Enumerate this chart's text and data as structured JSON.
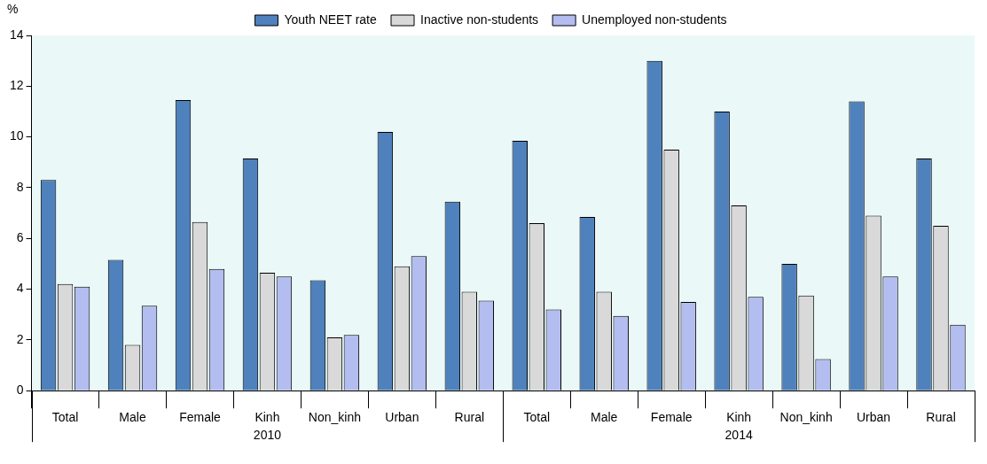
{
  "chart_data": {
    "type": "bar",
    "ylabel": "%",
    "categories": [
      "Total",
      "Male",
      "Female",
      "Kinh",
      "Non_kinh",
      "Urban",
      "Rural",
      "Total",
      "Male",
      "Female",
      "Kinh",
      "Non_kinh",
      "Urban",
      "Rural"
    ],
    "series": [
      {
        "name": "Youth NEET rate",
        "color": "#4f81bd",
        "values": [
          8.3,
          5.15,
          11.45,
          9.15,
          4.35,
          10.2,
          7.45,
          9.85,
          6.85,
          13.0,
          11.0,
          5.0,
          11.4,
          9.15
        ]
      },
      {
        "name": "Inactive non-students",
        "color": "#d9d9d9",
        "values": [
          4.2,
          1.8,
          6.65,
          4.65,
          2.1,
          4.9,
          3.9,
          6.6,
          3.9,
          9.5,
          7.3,
          3.75,
          6.9,
          6.5
        ]
      },
      {
        "name": "Unemployed non-students",
        "color": "#b3bdef",
        "values": [
          4.1,
          3.35,
          4.8,
          4.5,
          2.2,
          5.3,
          3.55,
          3.2,
          2.95,
          3.5,
          3.7,
          1.25,
          4.5,
          2.6
        ]
      }
    ],
    "ylim": [
      0,
      14
    ],
    "yticks": [
      0,
      2,
      4,
      6,
      8,
      10,
      12,
      14
    ],
    "grid": false,
    "legend": "top",
    "annotations": [
      "2010",
      "2014"
    ]
  }
}
